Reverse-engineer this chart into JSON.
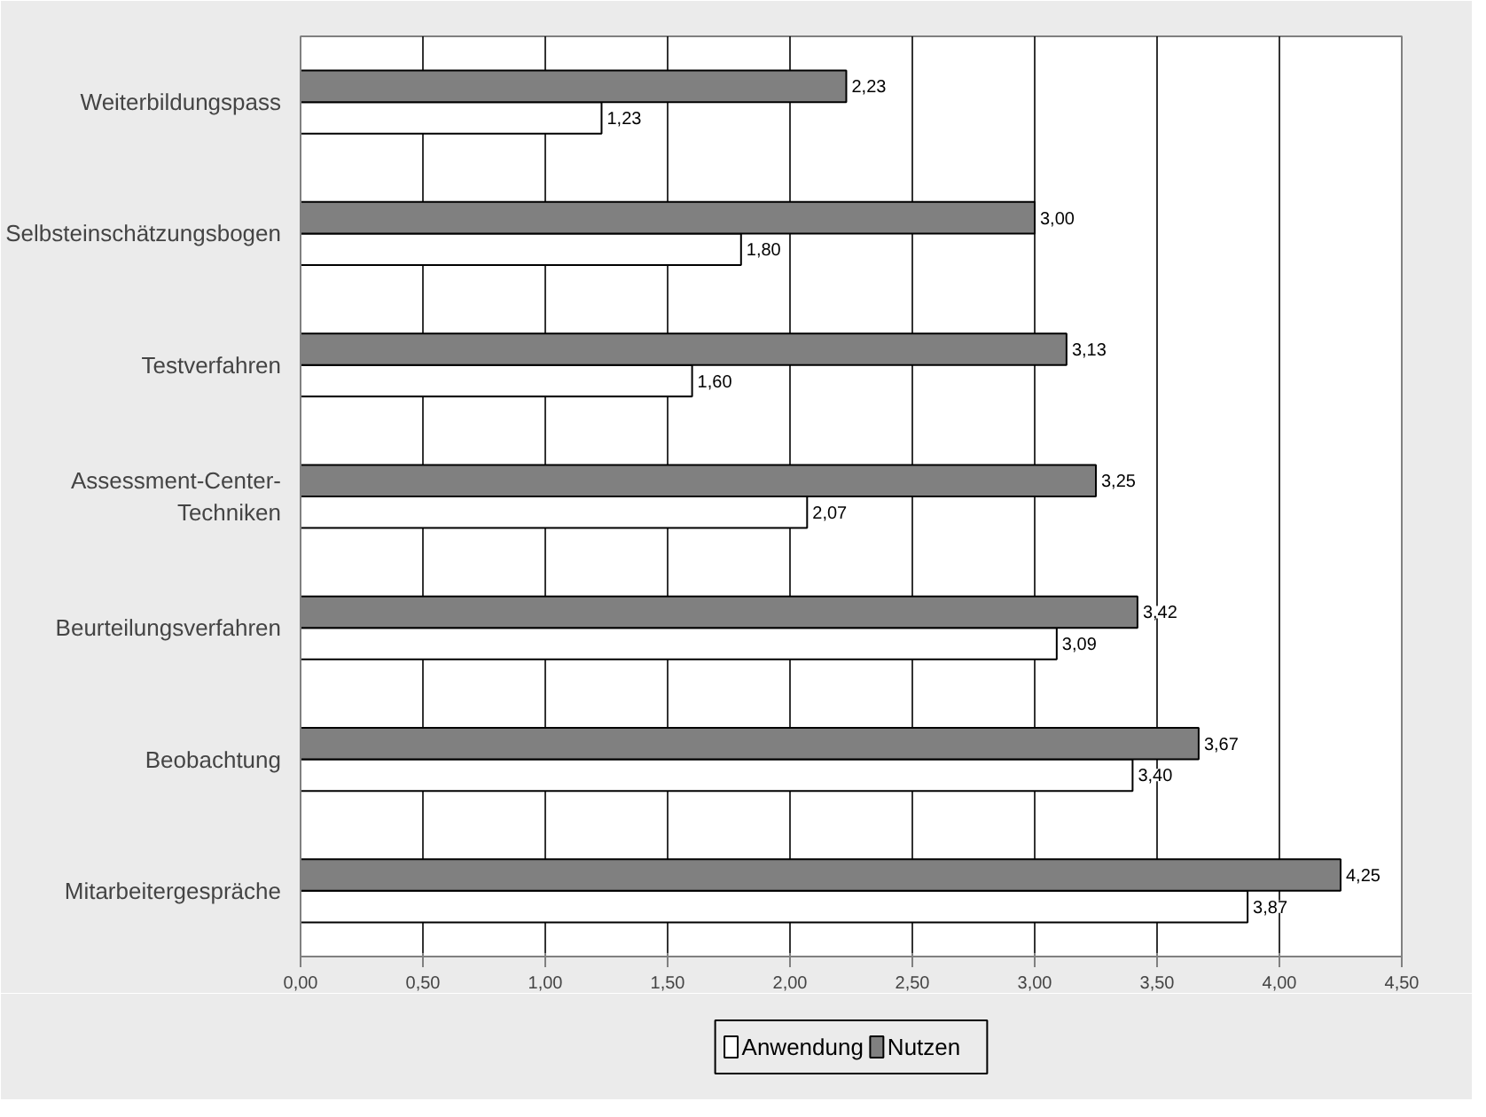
{
  "chart_data": {
    "type": "bar",
    "orientation": "horizontal",
    "categories": [
      "Weiterbildungspass",
      "Selbsteinschätzungsbogen",
      "Testverfahren",
      "Assessment-Center-Techniken",
      "Beurteilungsverfahren",
      "Beobachtung",
      "Mitarbeitergespräche"
    ],
    "series": [
      {
        "name": "Anwendung",
        "color": "#ffffff",
        "values": [
          1.23,
          1.8,
          1.6,
          2.07,
          3.09,
          3.4,
          3.87
        ],
        "value_labels": [
          "1,23",
          "1,80",
          "1,60",
          "2,07",
          "3,09",
          "3,40",
          "3,87"
        ]
      },
      {
        "name": "Nutzen",
        "color": "#808080",
        "values": [
          2.23,
          3.0,
          3.13,
          3.25,
          3.42,
          3.67,
          4.25
        ],
        "value_labels": [
          "2,23",
          "3,00",
          "3,13",
          "3,25",
          "3,42",
          "3,67",
          "4,25"
        ]
      }
    ],
    "xlim": [
      0,
      4.5
    ],
    "xticks": [
      {
        "value": 0,
        "label": "0,00"
      },
      {
        "value": 0.5,
        "label": "0,50"
      },
      {
        "value": 1,
        "label": "1,00"
      },
      {
        "value": 1.5,
        "label": "1,50"
      },
      {
        "value": 2,
        "label": "2,00"
      },
      {
        "value": 2.5,
        "label": "2,50"
      },
      {
        "value": 3,
        "label": "3,00"
      },
      {
        "value": 3.5,
        "label": "3,50"
      },
      {
        "value": 4,
        "label": "4,00"
      },
      {
        "value": 4.5,
        "label": "4,50"
      }
    ],
    "grid": "x",
    "legend": "bottom"
  }
}
